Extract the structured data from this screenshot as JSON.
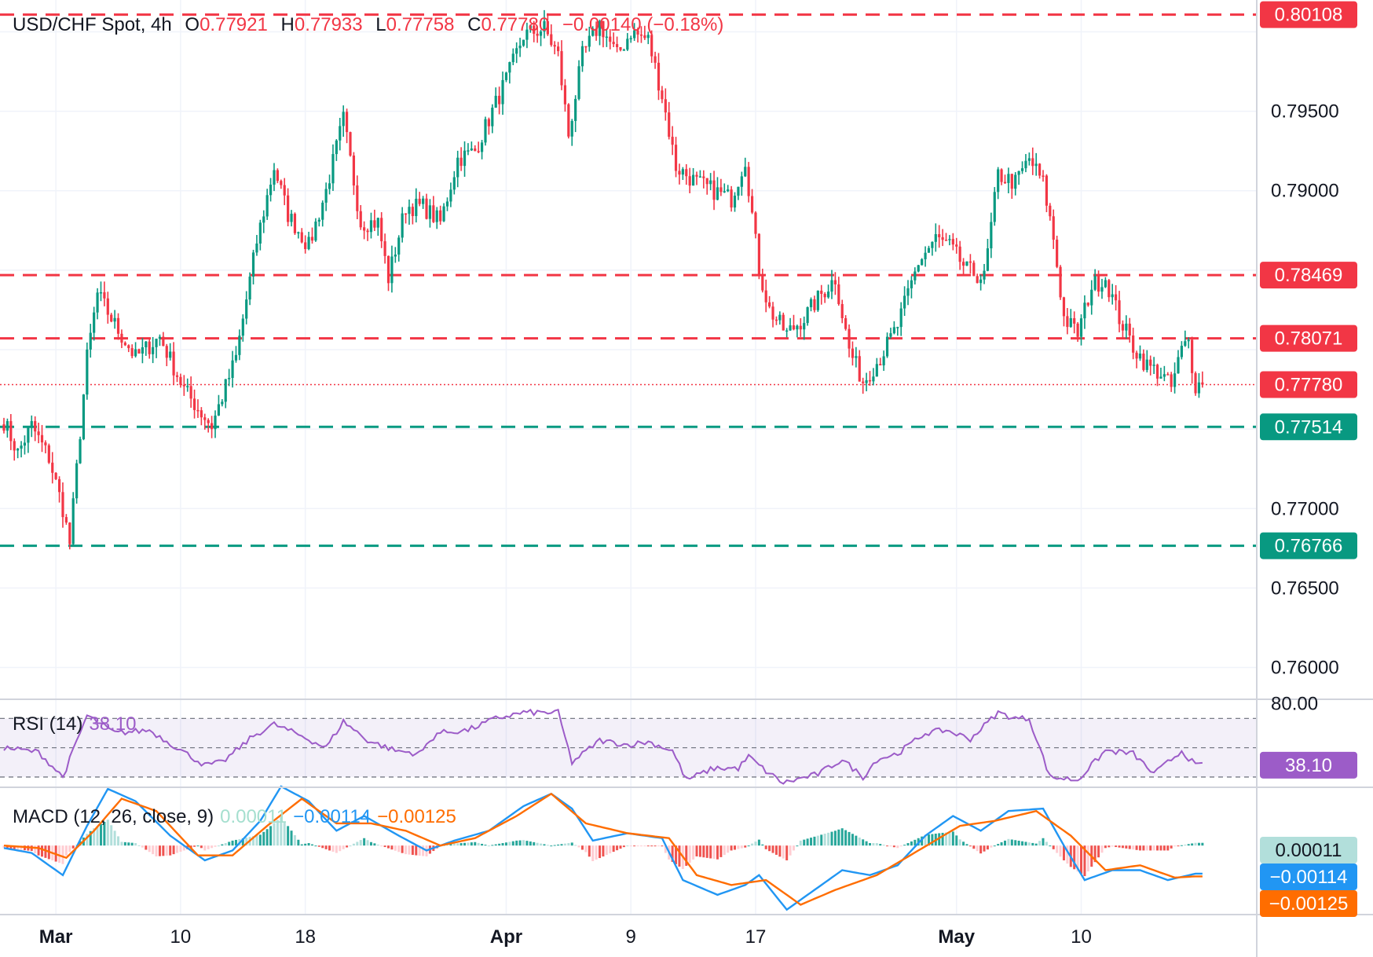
{
  "header": {
    "symbol": "USD/CHF Spot, 4h",
    "o_label": "O",
    "o_value": "0.77921",
    "h_label": "H",
    "h_value": "0.77933",
    "l_label": "L",
    "l_value": "0.77758",
    "c_label": "C",
    "c_value": "0.77780",
    "change": "−0.00140 (−0.18%)"
  },
  "colors": {
    "up": "#089981",
    "down": "#f23645",
    "grid": "#f0f3fa",
    "text": "#131722",
    "rsi": "#9c5cc8",
    "macd": "#2196f3",
    "signal": "#ff6d00",
    "resistance": "#f23645",
    "support": "#089981"
  },
  "chart_data": [
    {
      "type": "candlestick",
      "axis": {
        "y_ticks": [
          "0.76000",
          "0.76500",
          "0.77000",
          "0.79000",
          "0.79500"
        ],
        "y_min": 0.758,
        "y_max": 0.802,
        "x_ticks": [
          "Mar",
          "10",
          "18",
          "Apr",
          "9",
          "17",
          "May",
          "10"
        ]
      },
      "horizontal_lines": [
        {
          "value": 0.80108,
          "label": "0.80108",
          "role": "resistance"
        },
        {
          "value": 0.78469,
          "label": "0.78469",
          "role": "resistance"
        },
        {
          "value": 0.78071,
          "label": "0.78071",
          "role": "resistance"
        },
        {
          "value": 0.77514,
          "label": "0.77514",
          "role": "support"
        },
        {
          "value": 0.76766,
          "label": "0.76766",
          "role": "support"
        }
      ],
      "last_price": {
        "value": 0.7778,
        "label": "0.77780"
      },
      "path": [
        [
          0,
          0.7755
        ],
        [
          4,
          0.7735
        ],
        [
          8,
          0.7752
        ],
        [
          13,
          0.7732
        ],
        [
          17,
          0.77
        ],
        [
          19,
          0.7678
        ],
        [
          24,
          0.7795
        ],
        [
          27,
          0.7835
        ],
        [
          33,
          0.7812
        ],
        [
          38,
          0.7795
        ],
        [
          45,
          0.7808
        ],
        [
          52,
          0.7775
        ],
        [
          57,
          0.776
        ],
        [
          60,
          0.7752
        ],
        [
          67,
          0.7795
        ],
        [
          73,
          0.7868
        ],
        [
          78,
          0.7915
        ],
        [
          82,
          0.7885
        ],
        [
          88,
          0.7865
        ],
        [
          93,
          0.79
        ],
        [
          98,
          0.7945
        ],
        [
          103,
          0.788
        ],
        [
          108,
          0.788
        ],
        [
          111,
          0.7845
        ],
        [
          116,
          0.789
        ],
        [
          121,
          0.789
        ],
        [
          126,
          0.788
        ],
        [
          131,
          0.792
        ],
        [
          136,
          0.7925
        ],
        [
          141,
          0.795
        ],
        [
          146,
          0.7975
        ],
        [
          150,
          0.7998
        ],
        [
          156,
          0.8002
        ],
        [
          160,
          0.7985
        ],
        [
          163,
          0.7935
        ],
        [
          167,
          0.7985
        ],
        [
          172,
          0.8005
        ],
        [
          177,
          0.7985
        ],
        [
          181,
          0.8
        ],
        [
          186,
          0.7995
        ],
        [
          190,
          0.796
        ],
        [
          194,
          0.7915
        ],
        [
          200,
          0.7905
        ],
        [
          205,
          0.79
        ],
        [
          210,
          0.7895
        ],
        [
          214,
          0.792
        ],
        [
          218,
          0.785
        ],
        [
          221,
          0.7825
        ],
        [
          226,
          0.781
        ],
        [
          231,
          0.782
        ],
        [
          236,
          0.7835
        ],
        [
          240,
          0.7845
        ],
        [
          244,
          0.78
        ],
        [
          248,
          0.778
        ],
        [
          253,
          0.7795
        ],
        [
          258,
          0.7815
        ],
        [
          264,
          0.7855
        ],
        [
          269,
          0.787
        ],
        [
          273,
          0.7865
        ],
        [
          278,
          0.785
        ],
        [
          283,
          0.7845
        ],
        [
          287,
          0.791
        ],
        [
          292,
          0.7905
        ],
        [
          296,
          0.792
        ],
        [
          300,
          0.7905
        ],
        [
          303,
          0.787
        ],
        [
          306,
          0.782
        ],
        [
          310,
          0.781
        ],
        [
          314,
          0.784
        ],
        [
          318,
          0.7845
        ],
        [
          322,
          0.782
        ],
        [
          326,
          0.7802
        ],
        [
          330,
          0.779
        ],
        [
          334,
          0.7785
        ],
        [
          337,
          0.7776
        ],
        [
          340,
          0.78
        ],
        [
          342,
          0.7805
        ],
        [
          343,
          0.779
        ],
        [
          344,
          0.7778
        ]
      ]
    },
    {
      "type": "line",
      "title": "RSI (14)",
      "value": "38.10",
      "y_ticks": [
        "80.00"
      ],
      "y_range": [
        23,
        82
      ],
      "bands": [
        30,
        50,
        70
      ],
      "path": [
        [
          0,
          50
        ],
        [
          10,
          47
        ],
        [
          17,
          30
        ],
        [
          24,
          72
        ],
        [
          32,
          60
        ],
        [
          42,
          62
        ],
        [
          52,
          47
        ],
        [
          58,
          38
        ],
        [
          63,
          40
        ],
        [
          72,
          58
        ],
        [
          78,
          66
        ],
        [
          86,
          58
        ],
        [
          93,
          50
        ],
        [
          98,
          68
        ],
        [
          105,
          55
        ],
        [
          113,
          48
        ],
        [
          120,
          46
        ],
        [
          125,
          60
        ],
        [
          134,
          62
        ],
        [
          142,
          70
        ],
        [
          150,
          74
        ],
        [
          160,
          74
        ],
        [
          164,
          40
        ],
        [
          172,
          55
        ],
        [
          180,
          52
        ],
        [
          186,
          54
        ],
        [
          193,
          48
        ],
        [
          197,
          28
        ],
        [
          205,
          36
        ],
        [
          212,
          36
        ],
        [
          215,
          44
        ],
        [
          220,
          34
        ],
        [
          225,
          26
        ],
        [
          235,
          32
        ],
        [
          242,
          42
        ],
        [
          248,
          30
        ],
        [
          252,
          42
        ],
        [
          258,
          46
        ],
        [
          266,
          60
        ],
        [
          272,
          62
        ],
        [
          279,
          56
        ],
        [
          287,
          74
        ],
        [
          292,
          70
        ],
        [
          296,
          70
        ],
        [
          302,
          30
        ],
        [
          310,
          28
        ],
        [
          318,
          48
        ],
        [
          326,
          46
        ],
        [
          332,
          32
        ],
        [
          340,
          48
        ],
        [
          344,
          38
        ]
      ]
    },
    {
      "type": "line",
      "title": "MACD (12, 26, close, 9)",
      "hist_value": "0.00011",
      "macd_value": "−0.00114",
      "signal_value": "−0.00125",
      "y_range": [
        -0.0028,
        0.0023
      ],
      "macd_path": [
        [
          0,
          -0.0001
        ],
        [
          8,
          -0.0003
        ],
        [
          17,
          -0.0012
        ],
        [
          24,
          0.0008
        ],
        [
          30,
          0.0023
        ],
        [
          38,
          0.0018
        ],
        [
          48,
          0.0004
        ],
        [
          58,
          -0.0006
        ],
        [
          66,
          -0.0002
        ],
        [
          74,
          0.001
        ],
        [
          80,
          0.0024
        ],
        [
          88,
          0.0018
        ],
        [
          96,
          0.0006
        ],
        [
          104,
          0.0012
        ],
        [
          114,
          0.0004
        ],
        [
          122,
          -0.0002
        ],
        [
          130,
          0.0002
        ],
        [
          140,
          0.0006
        ],
        [
          150,
          0.0016
        ],
        [
          158,
          0.0021
        ],
        [
          164,
          0.0015
        ],
        [
          170,
          0.0002
        ],
        [
          180,
          0.0005
        ],
        [
          190,
          0.0003
        ],
        [
          196,
          -0.0014
        ],
        [
          206,
          -0.002
        ],
        [
          214,
          -0.0016
        ],
        [
          218,
          -0.0012
        ],
        [
          226,
          -0.0026
        ],
        [
          234,
          -0.0018
        ],
        [
          242,
          -0.001
        ],
        [
          250,
          -0.0012
        ],
        [
          258,
          -0.0008
        ],
        [
          266,
          0.0004
        ],
        [
          274,
          0.0012
        ],
        [
          282,
          0.0006
        ],
        [
          290,
          0.0014
        ],
        [
          300,
          0.0015
        ],
        [
          306,
          0.0
        ],
        [
          312,
          -0.0014
        ],
        [
          320,
          -0.001
        ],
        [
          328,
          -0.001
        ],
        [
          336,
          -0.0014
        ],
        [
          344,
          -0.00114
        ]
      ],
      "signal_path": [
        [
          0,
          0.0
        ],
        [
          10,
          -0.0001
        ],
        [
          18,
          -0.0005
        ],
        [
          26,
          0.0006
        ],
        [
          34,
          0.0019
        ],
        [
          44,
          0.0014
        ],
        [
          56,
          -0.0004
        ],
        [
          66,
          -0.0004
        ],
        [
          76,
          0.0008
        ],
        [
          86,
          0.0019
        ],
        [
          96,
          0.0009
        ],
        [
          106,
          0.0009
        ],
        [
          116,
          0.0006
        ],
        [
          126,
          0.0
        ],
        [
          136,
          0.0003
        ],
        [
          148,
          0.0012
        ],
        [
          158,
          0.0021
        ],
        [
          168,
          0.0009
        ],
        [
          180,
          0.0005
        ],
        [
          192,
          0.0003
        ],
        [
          200,
          -0.0012
        ],
        [
          210,
          -0.0016
        ],
        [
          220,
          -0.0014
        ],
        [
          230,
          -0.0024
        ],
        [
          240,
          -0.0018
        ],
        [
          252,
          -0.0012
        ],
        [
          264,
          -0.0002
        ],
        [
          276,
          0.0008
        ],
        [
          286,
          0.001
        ],
        [
          298,
          0.0014
        ],
        [
          308,
          0.0004
        ],
        [
          318,
          -0.001
        ],
        [
          328,
          -0.0008
        ],
        [
          338,
          -0.0013
        ],
        [
          344,
          -0.00125
        ]
      ]
    }
  ]
}
